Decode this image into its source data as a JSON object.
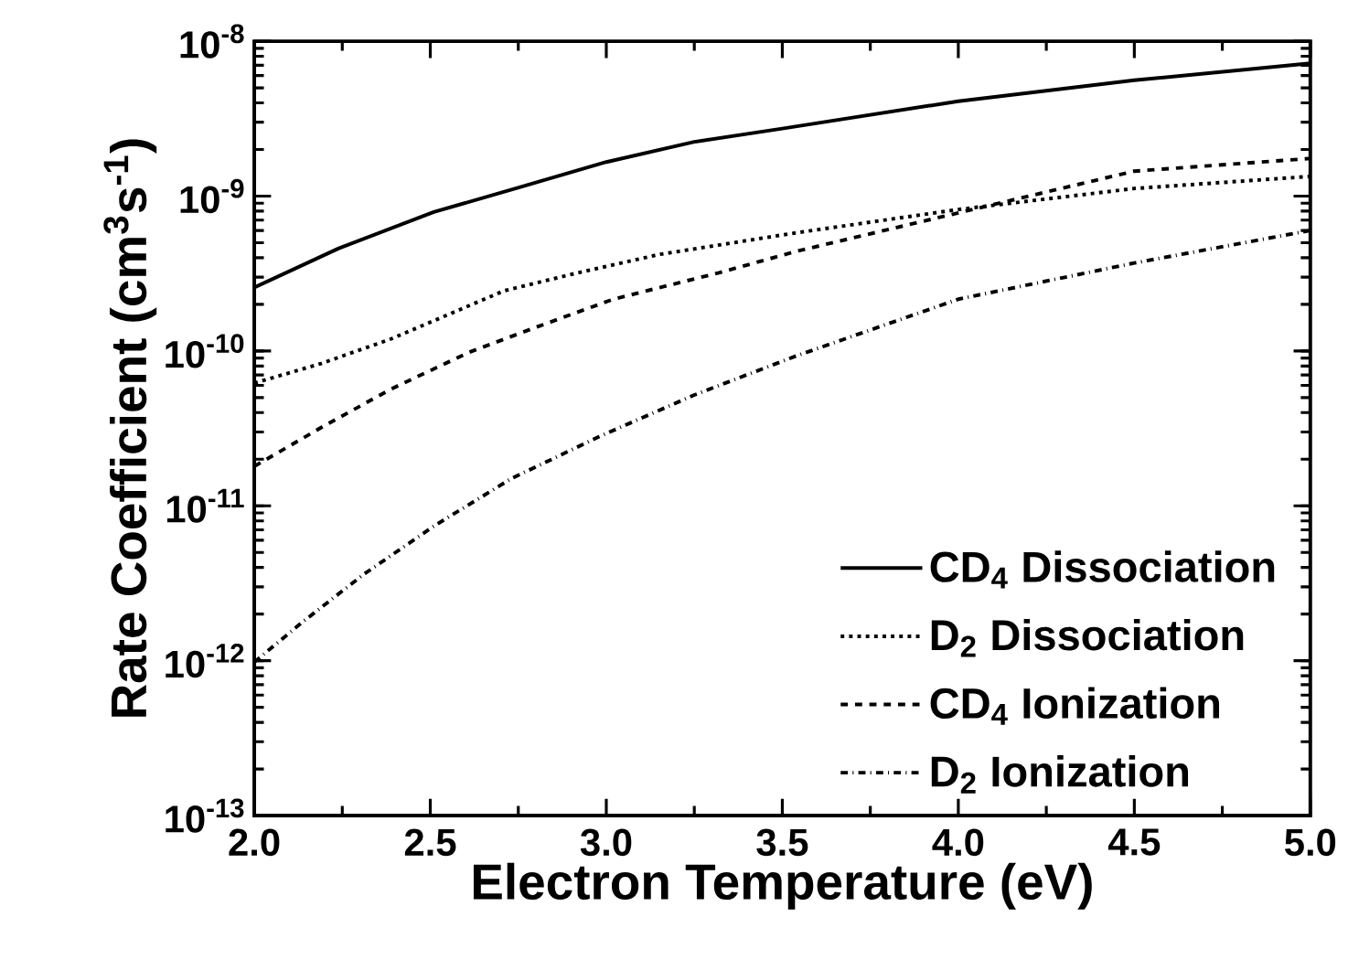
{
  "chart_data": {
    "type": "line",
    "xlabel": "Electron Temperature (eV)",
    "ylabel": "Rate Coefficient (cm$^{3}$s$^{-1}$)",
    "log": "y",
    "grid": false,
    "legend": "bottom right",
    "marker": "none",
    "xlim": [
      2.0,
      5.0
    ],
    "ylim": [
      1e-13,
      1e-08
    ],
    "xticks": [
      {
        "value": 2.0,
        "label": "2.0"
      },
      {
        "value": 2.5,
        "label": "2.5"
      },
      {
        "value": 3.0,
        "label": "3.0"
      },
      {
        "value": 3.5,
        "label": "3.5"
      },
      {
        "value": 4.0,
        "label": "4.0"
      },
      {
        "value": 4.5,
        "label": "4.5"
      },
      {
        "value": 5.0,
        "label": "5.0"
      }
    ],
    "yticks": [
      {
        "value": 1e-13,
        "label": "10$^{-13}$"
      },
      {
        "value": 1e-12,
        "label": "10$^{-12}$"
      },
      {
        "value": 1e-11,
        "label": "10$^{-11}$"
      },
      {
        "value": 1e-10,
        "label": "10$^{-10}$"
      },
      {
        "value": 1e-09,
        "label": "10$^{-9}$"
      },
      {
        "value": 1e-08,
        "label": "10$^{-8}$"
      }
    ],
    "series": [
      {
        "name": "CD$_{4}$ Dissociation",
        "color": "#000000",
        "line_style": "solid",
        "x": [
          2.0,
          2.24,
          2.51,
          2.76,
          3.0,
          3.25,
          3.5,
          4.0,
          4.5,
          5.0
        ],
        "values": [
          2.57e-10,
          4.6e-10,
          7.9e-10,
          1.15e-09,
          1.66e-09,
          2.24e-09,
          2.73e-09,
          4.1e-09,
          5.6e-09,
          7.2e-09
        ]
      },
      {
        "name": "D$_{2}$ Dissociation",
        "color": "#000000",
        "line_style": "dotted",
        "x": [
          2.0,
          2.19,
          2.39,
          2.71,
          2.92,
          3.15,
          3.54,
          4.0,
          4.5,
          5.0
        ],
        "values": [
          6.2e-11,
          8.3e-11,
          1.2e-10,
          2.45e-10,
          3.2e-10,
          4.2e-10,
          5.8e-10,
          8.2e-10,
          1.12e-09,
          1.34e-09
        ]
      },
      {
        "name": "CD$_{4}$ Ionization",
        "color": "#000000",
        "line_style": "dashed",
        "x": [
          2.0,
          2.2,
          2.39,
          2.61,
          2.81,
          3.02,
          3.32,
          3.54,
          4.0,
          4.5,
          5.0
        ],
        "values": [
          1.8e-11,
          3.3e-11,
          5.7e-11,
          9.8e-11,
          1.45e-10,
          2.16e-10,
          3.2e-10,
          4.4e-10,
          7.8e-10,
          1.45e-09,
          1.75e-09
        ]
      },
      {
        "name": "D$_{2}$ Ionization",
        "color": "#000000",
        "line_style": "dashdot",
        "x": [
          2.0,
          2.14,
          2.31,
          2.51,
          2.73,
          2.98,
          3.25,
          3.54,
          4.0,
          4.5,
          5.0
        ],
        "values": [
          9.8e-13,
          1.8e-12,
          3.6e-12,
          7.4e-12,
          1.5e-11,
          2.8e-11,
          5.2e-11,
          9.3e-11,
          2.16e-10,
          3.7e-10,
          6e-10
        ]
      }
    ]
  }
}
